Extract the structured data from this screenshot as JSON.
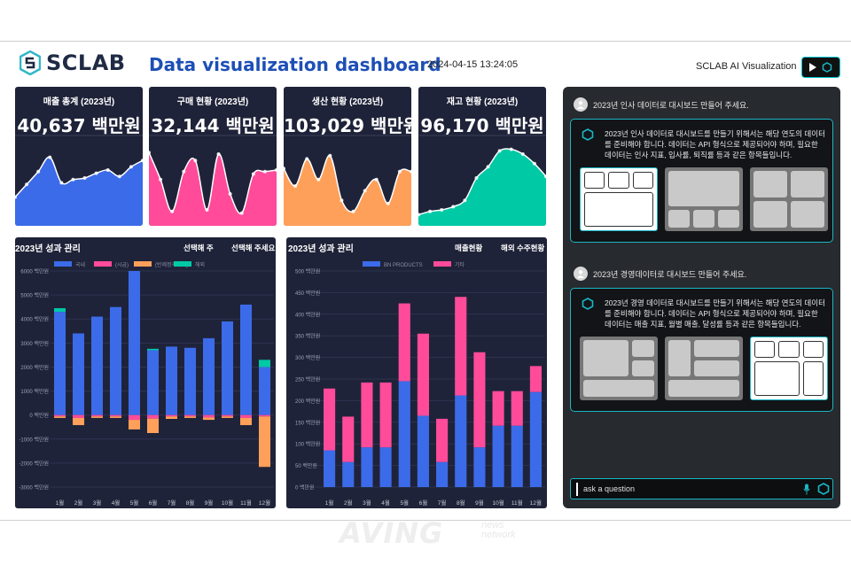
{
  "header": {
    "brand": "SCLAB",
    "title": "Data visualization dashboard",
    "datetime": "2024-04-15  13:24:05",
    "ai_label": "SCLAB AI Visualization"
  },
  "colors": {
    "panel_bg": "#1f2339",
    "blue": "#3b6be8",
    "pink": "#ff4b9a",
    "orange": "#ffa05a",
    "teal": "#00c9a6",
    "accent": "#19b7c4"
  },
  "kpis": [
    {
      "title": "매출 총계 (2023년)",
      "value": "40,637 백만원",
      "color": "#3b6be8",
      "values": [
        26,
        42,
        58,
        76,
        44,
        48,
        50,
        56,
        60,
        52,
        64,
        72
      ]
    },
    {
      "title": "구매 현황 (2023년)",
      "value": "32,144 백만원",
      "color": "#ff4b9a",
      "values": [
        82,
        48,
        8,
        58,
        72,
        10,
        80,
        30,
        6,
        55,
        58,
        60
      ]
    },
    {
      "title": "생산 현황 (2023년)",
      "value": "103,029 백만원",
      "color": "#ffa05a",
      "values": [
        62,
        40,
        74,
        48,
        78,
        22,
        8,
        34,
        48,
        18,
        58,
        58
      ]
    },
    {
      "title": "재고 현황 (2023년)",
      "value": "96,170 백만원",
      "color": "#00c9a6",
      "values": [
        4,
        8,
        10,
        14,
        22,
        50,
        64,
        84,
        86,
        80,
        68,
        52
      ]
    }
  ],
  "chart_data": [
    {
      "type": "bar",
      "title": "2023년 성과 관리",
      "tabs": [
        "선택해 주",
        "선택해 주세요"
      ],
      "categories": [
        "1월",
        "2월",
        "3월",
        "4월",
        "5월",
        "6월",
        "7월",
        "8월",
        "9월",
        "10월",
        "11월",
        "12월"
      ],
      "legend": [
        "국내",
        "(시급)",
        "(반제정격가이)",
        "해외"
      ],
      "y_ticks": [
        "6000 백만원",
        "5000 백만원",
        "4000 백만원",
        "3000 백만원",
        "2000 백만원",
        "1000 백만원",
        "0 백만원",
        "-1000 백만원",
        "-2000 백만원",
        "-3000 백만원"
      ],
      "ylim": [
        -3000,
        6000
      ],
      "series": [
        {
          "name": "국내",
          "color": "#3b6be8",
          "values": [
            4300,
            3400,
            4100,
            4500,
            6000,
            2700,
            2850,
            2800,
            3200,
            3900,
            4600,
            2000
          ]
        },
        {
          "name": "(시급)",
          "color": "#ff4b9a",
          "values": [
            -60,
            -120,
            -60,
            -60,
            -200,
            -150,
            -60,
            -60,
            -100,
            -60,
            -120,
            -60
          ]
        },
        {
          "name": "(반제정격가이)",
          "color": "#ffa05a",
          "values": [
            -60,
            -300,
            -60,
            -60,
            -400,
            -600,
            -100,
            -60,
            -100,
            -60,
            -300,
            -2100
          ]
        },
        {
          "name": "해외",
          "color": "#00c9a6",
          "values": [
            150,
            0,
            0,
            0,
            0,
            60,
            0,
            0,
            0,
            0,
            0,
            300
          ]
        }
      ]
    },
    {
      "type": "bar",
      "title": "2023년 성과 관리",
      "tabs": [
        "매출현황",
        "해외 수주현황"
      ],
      "categories": [
        "1월",
        "2월",
        "3월",
        "4월",
        "5월",
        "6월",
        "7월",
        "8월",
        "9월",
        "10월",
        "11월",
        "12월"
      ],
      "legend": [
        "BN PRODUCTS",
        "기타"
      ],
      "y_ticks": [
        "500 백만원",
        "450 백만원",
        "400 백만원",
        "350 백만원",
        "300 백만원",
        "250 백만원",
        "200 백만원",
        "150 백만원",
        "100 백만원",
        "50 백만원",
        "0 백만원"
      ],
      "ylim": [
        0,
        500
      ],
      "series": [
        {
          "name": "BN PRODUCTS",
          "color": "#3b6be8",
          "values": [
            85,
            58,
            92,
            92,
            245,
            165,
            58,
            212,
            92,
            142,
            142,
            220
          ]
        },
        {
          "name": "기타",
          "color": "#ff4b9a",
          "values": [
            143,
            105,
            150,
            150,
            180,
            190,
            100,
            228,
            220,
            80,
            80,
            60
          ]
        }
      ]
    }
  ],
  "chat": {
    "q1": "2023년 인사 데이터로 대시보드 만들어 주세요.",
    "a1": "2023년 인사 데이터로 대시보드를 만들기 위해서는 해당 연도의 데이터를 준비해야 합니다. 데이터는 API 형식으로 제공되어야 하며, 필요한 데이터는 인사 지표, 입사률, 퇴직률 등과 같은 항목들입니다.",
    "q2": "2023년 경영데이터로 대시보드 만들어 주세요.",
    "a2": "2023년 경영 데이터로 대시보드를 만들기 위해서는 해당 연도의 데이터를 준비해야 합니다. 데이터는 API 형식으로 제공되어야 하며, 필요한 데이터는 매출 지표, 월별 매출, 달성률 등과 같은 항목들입니다.",
    "input_placeholder": "ask a question"
  },
  "watermark": {
    "main": "AVING",
    "sub1": "news",
    "sub2": "network"
  }
}
